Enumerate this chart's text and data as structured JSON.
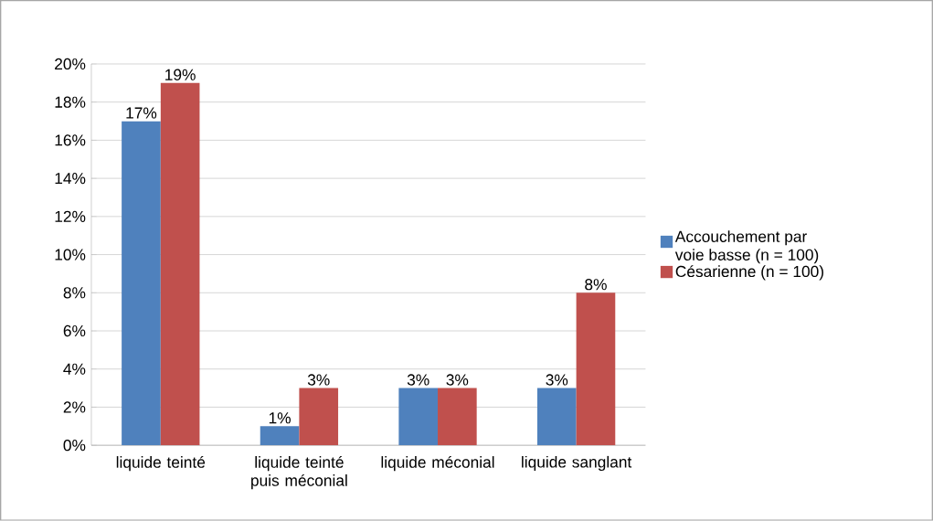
{
  "chart_data": {
    "type": "bar",
    "categories": [
      "liquide teinté",
      "liquide teinté puis méconial",
      "liquide méconial",
      "liquide sanglant"
    ],
    "series": [
      {
        "name": "Accouchement par voie basse (n = 100)",
        "color": "#4f81bd",
        "values": [
          17,
          1,
          3,
          3
        ],
        "value_labels": [
          "17%",
          "1%",
          "3%",
          "3%"
        ]
      },
      {
        "name": "Césarienne (n = 100)",
        "color": "#c0504d",
        "values": [
          19,
          3,
          3,
          8
        ],
        "value_labels": [
          "19%",
          "3%",
          "3%",
          "8%"
        ]
      }
    ],
    "ylim": [
      0,
      20
    ],
    "yticks": [
      {
        "value": 0,
        "label": "0%"
      },
      {
        "value": 2,
        "label": "2%"
      },
      {
        "value": 4,
        "label": "4%"
      },
      {
        "value": 6,
        "label": "6%"
      },
      {
        "value": 8,
        "label": "8%"
      },
      {
        "value": 10,
        "label": "10%"
      },
      {
        "value": 12,
        "label": "12%"
      },
      {
        "value": 14,
        "label": "14%"
      },
      {
        "value": 16,
        "label": "16%"
      },
      {
        "value": 18,
        "label": "18%"
      },
      {
        "value": 20,
        "label": "20%"
      }
    ],
    "grid": "y",
    "legend": "right"
  }
}
